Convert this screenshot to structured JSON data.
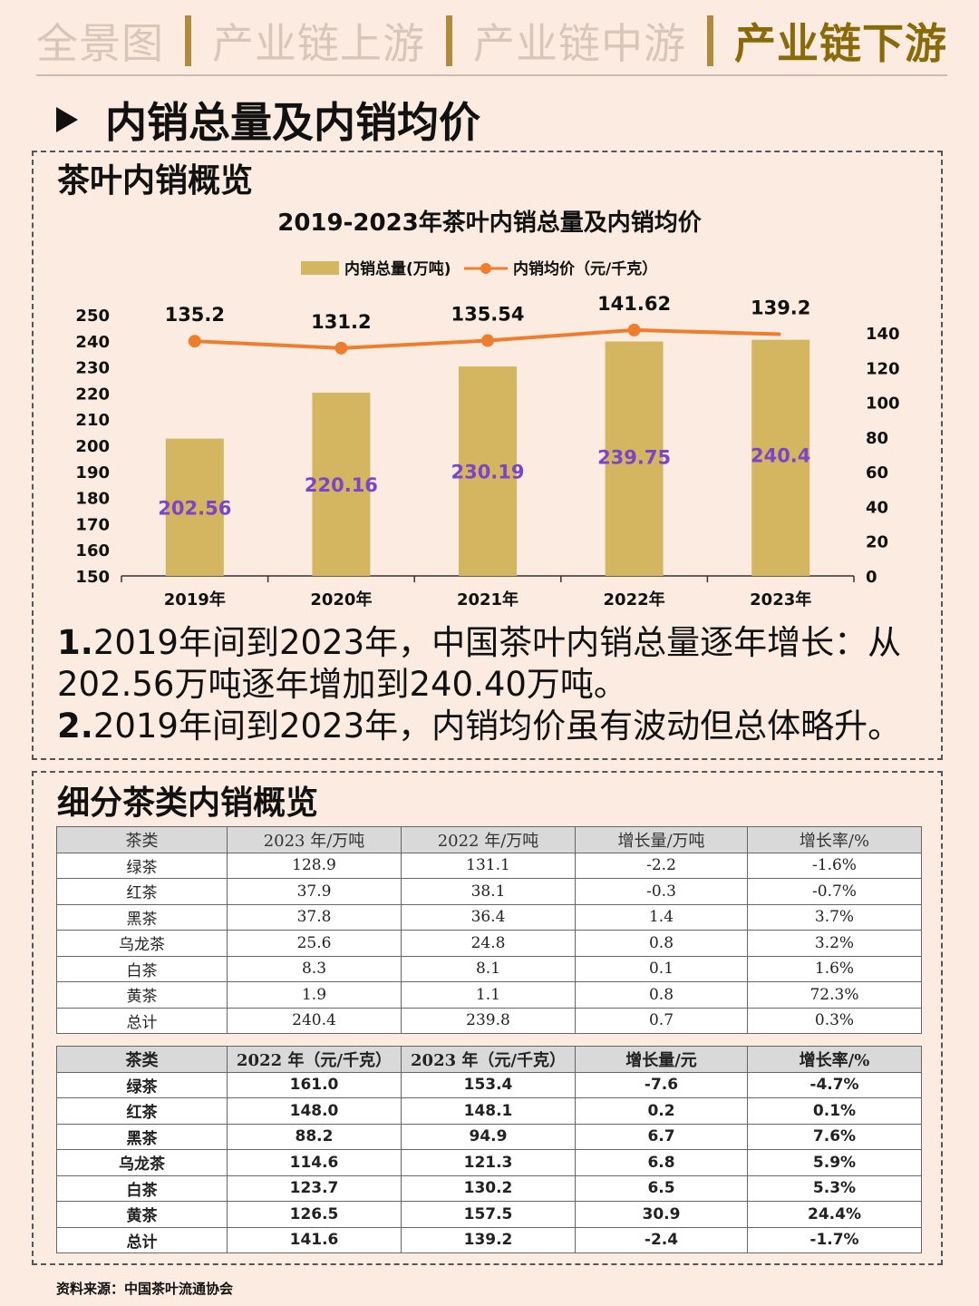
{
  "nav": {
    "tabs": [
      {
        "label": "全景图",
        "active": false
      },
      {
        "label": "产业链上游",
        "active": false
      },
      {
        "label": "产业链中游",
        "active": false
      },
      {
        "label": "产业链下游",
        "active": true
      }
    ]
  },
  "heading": "内销总量及内销均价",
  "section1": {
    "title": "茶叶内销概览",
    "notes": [
      {
        "num": "1.",
        "text": "2019年间到2023年，中国茶叶内销总量逐年增长：从202.56万吨逐年增加到240.40万吨。"
      },
      {
        "num": "2.",
        "text": "2019年间到2023年，内销均价虽有波动但总体略升。"
      }
    ]
  },
  "chart_data": {
    "type": "bar",
    "title": "2019-2023年茶叶内销总量及内销均价",
    "categories": [
      "2019年",
      "2020年",
      "2021年",
      "2022年",
      "2023年"
    ],
    "series": [
      {
        "name": "内销总量(万吨)",
        "type": "bar",
        "axis": "left",
        "values": [
          202.56,
          220.16,
          230.19,
          239.75,
          240.4
        ],
        "labels": [
          "202.56",
          "220.16",
          "230.19",
          "239.75",
          "240.4"
        ]
      },
      {
        "name": "内销均价（元/千克）",
        "type": "line",
        "axis": "right",
        "values": [
          135.2,
          131.2,
          135.54,
          141.62,
          139.2
        ],
        "labels": [
          "135.2",
          "131.2",
          "135.54",
          "141.62",
          "139.2"
        ]
      }
    ],
    "ylim": [
      150,
      250
    ],
    "yticks": [
      "150",
      "160",
      "170",
      "180",
      "190",
      "200",
      "210",
      "220",
      "230",
      "240",
      "250"
    ],
    "y2lim": [
      0,
      140
    ],
    "y2ticks": [
      "0",
      "20",
      "40",
      "60",
      "80",
      "100",
      "120",
      "140"
    ],
    "legend_position": "top-center",
    "grid": false,
    "colors": {
      "bar": "#d4b660",
      "line": "#ee7d2d",
      "bar_label": "#7a45c8"
    }
  },
  "section2": {
    "title": "细分茶类内销概览",
    "table1": {
      "headers": [
        "茶类",
        "2023 年/万吨",
        "2022 年/万吨",
        "增长量/万吨",
        "增长率/%"
      ],
      "rows": [
        [
          "绿茶",
          "128.9",
          "131.1",
          "-2.2",
          "-1.6%"
        ],
        [
          "红茶",
          "37.9",
          "38.1",
          "-0.3",
          "-0.7%"
        ],
        [
          "黑茶",
          "37.8",
          "36.4",
          "1.4",
          "3.7%"
        ],
        [
          "乌龙茶",
          "25.6",
          "24.8",
          "0.8",
          "3.2%"
        ],
        [
          "白茶",
          "8.3",
          "8.1",
          "0.1",
          "1.6%"
        ],
        [
          "黄茶",
          "1.9",
          "1.1",
          "0.8",
          "72.3%"
        ],
        [
          "总计",
          "240.4",
          "239.8",
          "0.7",
          "0.3%"
        ]
      ]
    },
    "table2": {
      "headers": [
        "茶类",
        "2022 年（元/千克）",
        "2023 年（元/千克）",
        "增长量/元",
        "增长率/%"
      ],
      "rows": [
        [
          "绿茶",
          "161.0",
          "153.4",
          "-7.6",
          "-4.7%"
        ],
        [
          "红茶",
          "148.0",
          "148.1",
          "0.2",
          "0.1%"
        ],
        [
          "黑茶",
          "88.2",
          "94.9",
          "6.7",
          "7.6%"
        ],
        [
          "乌龙茶",
          "114.6",
          "121.3",
          "6.8",
          "5.9%"
        ],
        [
          "白茶",
          "123.7",
          "130.2",
          "6.5",
          "5.3%"
        ],
        [
          "黄茶",
          "126.5",
          "157.5",
          "30.9",
          "24.4%"
        ],
        [
          "总计",
          "141.6",
          "139.2",
          "-2.4",
          "-1.7%"
        ]
      ]
    }
  },
  "source": "资料来源：中国茶叶流通协会"
}
